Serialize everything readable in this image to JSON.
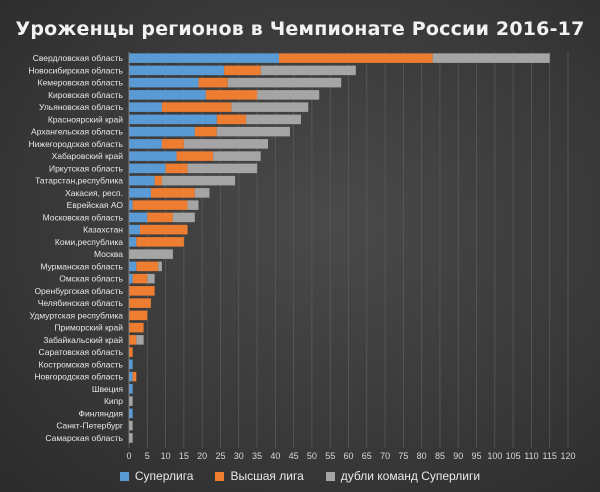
{
  "chart_data": {
    "type": "bar",
    "orientation": "horizontal",
    "stacked": true,
    "title": "Уроженцы регионов в Чемпионате России 2016-17",
    "categories": [
      "Свердловская область",
      "Новосибирская область",
      "Кемеровская область",
      "Кировская область",
      "Ульяновская область",
      "Красноярский край",
      "Архангельская область",
      "Нижегородская область",
      "Хабаровский край",
      "Иркутская область",
      "Татарстан,республика",
      "Хакасия, респ.",
      "Еврейская АО",
      "Московская область",
      "Казахстан",
      "Коми,республика",
      "Москва",
      "Мурманская область",
      "Омская область",
      "Оренбургская область",
      "Челябинская область",
      "Удмуртская республика",
      "Приморский край",
      "Забайкальский край",
      "Саратовская область",
      "Костромская область",
      "Новгородская область",
      "Швеция",
      "Кипр",
      "Финляндия",
      "Санкт-Петербург",
      "Самарская область"
    ],
    "series": [
      {
        "name": "Суперлига",
        "color": "#5b9bd5",
        "values": [
          41,
          26,
          19,
          21,
          9,
          24,
          18,
          9,
          13,
          10,
          7,
          6,
          1,
          5,
          3,
          2,
          0,
          2,
          1,
          0,
          0,
          0,
          0,
          0,
          0,
          1,
          1,
          1,
          0,
          1,
          0,
          0
        ]
      },
      {
        "name": "Высшая лига",
        "color": "#ed7d31",
        "values": [
          42,
          10,
          8,
          14,
          19,
          8,
          6,
          6,
          10,
          6,
          2,
          12,
          15,
          7,
          13,
          13,
          0,
          6,
          4,
          7,
          6,
          5,
          4,
          2,
          1,
          0,
          1,
          0,
          0,
          0,
          0,
          0
        ]
      },
      {
        "name": "дубли команд Суперлиги",
        "color": "#a5a5a5",
        "values": [
          32,
          26,
          31,
          17,
          21,
          15,
          20,
          23,
          13,
          19,
          20,
          4,
          3,
          6,
          0,
          0,
          12,
          1,
          2,
          0,
          0,
          0,
          0,
          2,
          0,
          0,
          0,
          0,
          1,
          0,
          1,
          1
        ]
      }
    ],
    "xlim": [
      0,
      120
    ],
    "xticks": [
      0,
      5,
      10,
      15,
      20,
      25,
      30,
      35,
      40,
      45,
      50,
      55,
      60,
      65,
      70,
      75,
      80,
      85,
      90,
      95,
      100,
      105,
      110,
      115,
      120
    ],
    "grid": true,
    "legend_position": "bottom"
  }
}
